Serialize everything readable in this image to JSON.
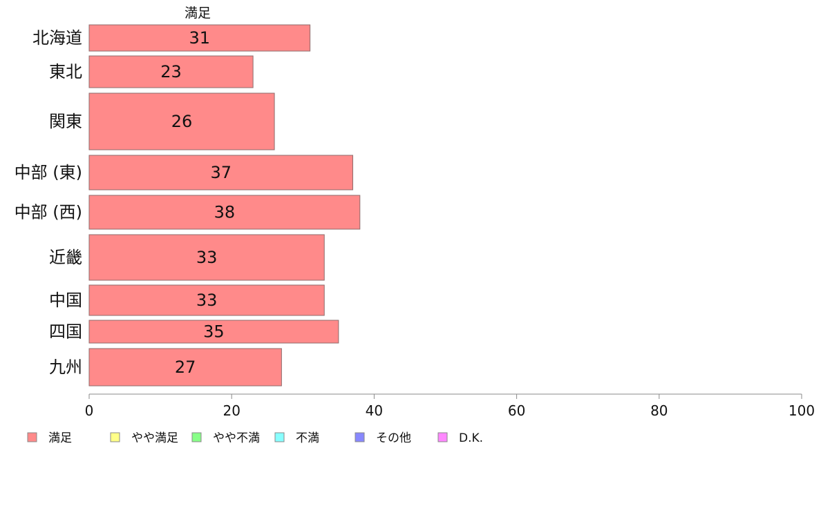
{
  "chart_data": {
    "type": "bar",
    "orientation": "horizontal",
    "panel_title": "満足",
    "categories": [
      "北海道",
      "東北",
      "関東",
      "中部 (東)",
      "中部 (西)",
      "近畿",
      "中国",
      "四国",
      "九州"
    ],
    "series": [
      {
        "name": "満足",
        "values": [
          31,
          23,
          26,
          37,
          38,
          33,
          33,
          35,
          27
        ],
        "color": "#ff8a8a"
      }
    ],
    "xlim": [
      0,
      100
    ],
    "xticks": [
      0,
      20,
      40,
      60,
      80,
      100
    ],
    "tick_labels": [
      "0",
      "20",
      "40",
      "60",
      "80",
      "100"
    ],
    "grid": false,
    "legend": {
      "placement": "bottom-left",
      "entries": [
        {
          "label": "満足",
          "color": "#ff8a8a"
        },
        {
          "label": "やや満足",
          "color": "#ffff88"
        },
        {
          "label": "やや不満",
          "color": "#88ff88"
        },
        {
          "label": "不満",
          "color": "#88ffff"
        },
        {
          "label": "その他",
          "color": "#8888ff"
        },
        {
          "label": "D.K.",
          "color": "#ff88ff"
        }
      ]
    }
  }
}
